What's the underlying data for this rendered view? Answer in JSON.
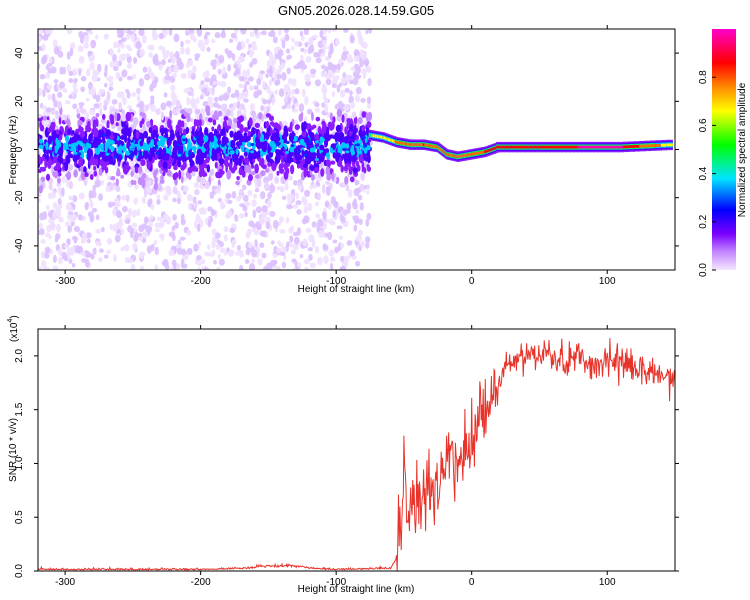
{
  "title": "GN05.2026.028.14.59.G05",
  "chart_data": [
    {
      "type": "heatmap",
      "xlabel": "Height of straight line (km)",
      "ylabel": "Frequency (Hz)",
      "xlim": [
        -320,
        150
      ],
      "ylim": [
        -50,
        50
      ],
      "xticks": [
        -300,
        -200,
        -100,
        0,
        100
      ],
      "yticks": [
        -40,
        -20,
        0,
        20,
        40
      ],
      "colorbar": {
        "label": "Normalized spectral amplitude",
        "range": [
          0,
          1
        ],
        "ticks": [
          0.0,
          0.2,
          0.4,
          0.6,
          0.8
        ],
        "tick_labels": [
          "0.0",
          "0.2",
          "0.4",
          "0.6",
          "0.8"
        ],
        "colormap": [
          "#f4e6ff",
          "#7a00ff",
          "#0000ff",
          "#00e5ff",
          "#00ff00",
          "#ffff00",
          "#ff8800",
          "#ff0000",
          "#ff00cc"
        ]
      },
      "ridge": {
        "x": [
          -75,
          -65,
          -55,
          -45,
          -35,
          -25,
          -18,
          -10,
          0,
          10,
          20,
          50,
          80,
          110,
          150
        ],
        "freq": [
          6,
          5,
          3,
          2,
          2,
          1,
          -2,
          -3,
          -2,
          -1,
          1,
          1,
          1,
          1,
          2
        ],
        "peak_amplitude": [
          0.55,
          0.6,
          0.7,
          0.75,
          0.8,
          0.78,
          0.7,
          0.72,
          0.75,
          0.8,
          0.85,
          0.88,
          0.9,
          0.92,
          0.6
        ]
      },
      "noise_region": {
        "x_range": [
          -320,
          -75
        ],
        "freq_center": 1,
        "freq_halfwidth": 10
      }
    },
    {
      "type": "line",
      "xlabel": "Height of straight line (km)",
      "ylabel": "SNR (10 * v/v)",
      "y_scale_label": "(x10",
      "y_scale_exponent": "4",
      "xlim": [
        -320,
        150
      ],
      "ylim": [
        0,
        2.25
      ],
      "xticks": [
        -300,
        -200,
        -100,
        0,
        100
      ],
      "yticks": [
        0.0,
        0.5,
        1.0,
        1.5,
        2.0
      ],
      "ytick_labels": [
        "0.0",
        "0.5",
        "1.0",
        "1.5",
        "2.0"
      ],
      "series": [
        {
          "color": "#e8332b",
          "x": [
            -320,
            -200,
            -140,
            -100,
            -60,
            -56,
            -52,
            -50,
            -48,
            -45,
            -40,
            -35,
            -30,
            -25,
            -20,
            -15,
            -10,
            -5,
            0,
            5,
            10,
            15,
            20,
            25,
            30,
            40,
            50,
            60,
            70,
            80,
            90,
            100,
            110,
            120,
            130,
            140,
            150
          ],
          "y": [
            0.01,
            0.01,
            0.03,
            0.01,
            0.02,
            0.1,
            0.4,
            0.9,
            0.55,
            0.5,
            0.6,
            0.65,
            0.85,
            0.8,
            0.95,
            1.05,
            1.1,
            1.2,
            1.25,
            1.35,
            1.45,
            1.6,
            1.75,
            1.85,
            1.95,
            2.0,
            2.02,
            1.98,
            1.95,
            2.0,
            1.9,
            1.95,
            1.95,
            1.9,
            1.85,
            1.8,
            1.75
          ]
        }
      ]
    }
  ]
}
